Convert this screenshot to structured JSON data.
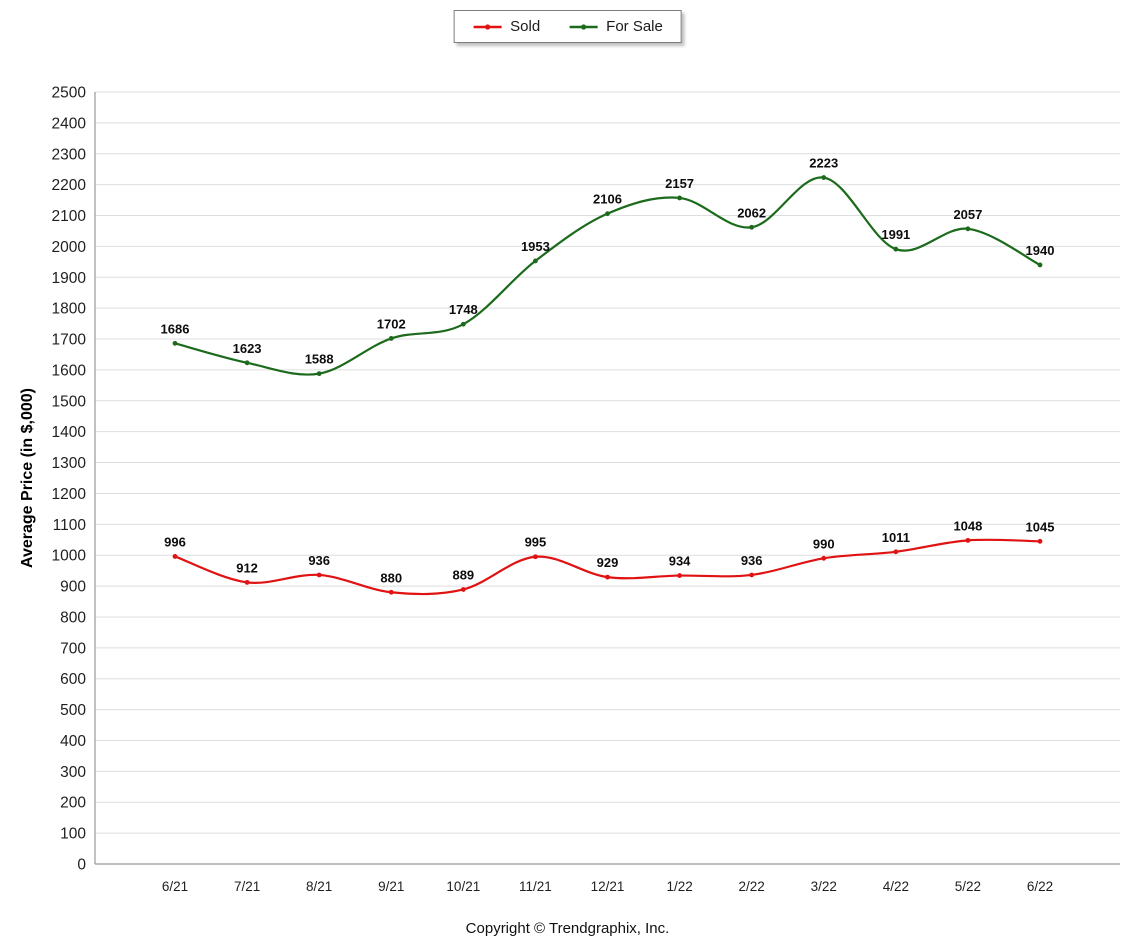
{
  "chart_data": {
    "type": "line",
    "categories": [
      "6/21",
      "7/21",
      "8/21",
      "9/21",
      "10/21",
      "11/21",
      "12/21",
      "1/22",
      "2/22",
      "3/22",
      "4/22",
      "5/22",
      "6/22"
    ],
    "series": [
      {
        "name": "Sold",
        "color": "#e01212",
        "values": [
          996,
          912,
          936,
          880,
          889,
          995,
          929,
          934,
          936,
          990,
          1011,
          1048,
          1045
        ]
      },
      {
        "name": "For Sale",
        "color": "#1c6b1c",
        "values": [
          1686,
          1623,
          1588,
          1702,
          1748,
          1953,
          2106,
          2157,
          2062,
          2223,
          1991,
          2057,
          1940
        ]
      }
    ],
    "title": "",
    "xlabel": "",
    "ylabel": "Average Price (in $,000)",
    "ylim": [
      0,
      2500
    ],
    "ytick_step": 100,
    "grid": true,
    "legend_position": "top-center",
    "data_labels": true
  },
  "footer": {
    "copyright": "Copyright © Trendgraphix, Inc."
  },
  "style": {
    "gridline_color": "#dedede",
    "axis_color": "#9a9a9a",
    "tick_label_color": "#1f1f1f",
    "data_label_color": "#0d0d0d"
  }
}
